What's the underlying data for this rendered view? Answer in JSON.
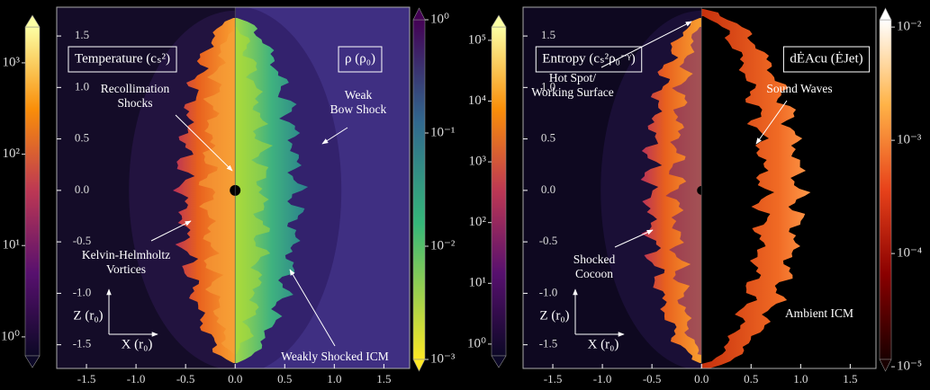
{
  "chart_data": [
    {
      "type": "heatmap",
      "labels": [
        "Temperature (cₛ²)",
        "ρ (ρ₀)"
      ],
      "xlabel": "X (r₀)",
      "ylabel": "Z (r₀)",
      "xlim": [
        -1.8,
        1.76
      ],
      "ylim": [
        -1.73,
        1.78
      ],
      "xticks": [
        -1.5,
        {
          "value": -1.0,
          "label": "-1.0"
        },
        -0.5,
        {
          "value": 0.0,
          "label": "0.0"
        },
        0.5,
        {
          "value": 1.0,
          "label": "1.0"
        },
        1.5
      ],
      "yticks": [
        -1.5,
        {
          "value": -1.0,
          "label": "-1.0"
        },
        -0.5,
        {
          "value": 0.0,
          "label": "0.0"
        },
        0.5,
        {
          "value": 1.0,
          "label": "1.0"
        },
        1.5
      ],
      "colorbars": [
        {
          "colormap": "inferno",
          "log": true,
          "lim": [
            0.62,
            2470
          ],
          "ticks": [
            {
              "value": 1,
              "label": "10⁰"
            },
            {
              "value": 10,
              "label": "10¹"
            },
            {
              "value": 100,
              "label": "10²"
            },
            {
              "value": 1000,
              "label": "10³"
            }
          ]
        },
        {
          "colormap": "viridis_r",
          "log": true,
          "lim": [
            0.001,
            1
          ],
          "ticks": [
            {
              "value": 1,
              "label": "10⁰"
            },
            {
              "value": 0.1,
              "label": "10⁻¹"
            },
            {
              "value": 0.01,
              "label": "10⁻²"
            },
            {
              "value": 0.001,
              "label": "10⁻³"
            }
          ]
        }
      ],
      "annotations": [
        [
          "Recollimation",
          "Shocks"
        ],
        [
          "Kelvin-Helmholtz",
          "Vortices"
        ],
        [
          "Weak",
          "Bow Shock"
        ],
        [
          "Weakly Shocked ICM"
        ]
      ]
    },
    {
      "type": "heatmap",
      "labels": [
        "Entropy (cₛ²ρ₀⁻ᵞ)",
        "dĖAcu (ĖJet)"
      ],
      "xlabel": "X (r₀)",
      "ylabel": "Z (r₀)",
      "xlim": [
        -1.8,
        1.76
      ],
      "ylim": [
        -1.73,
        1.78
      ],
      "xticks": [
        -1.5,
        {
          "value": -1.0,
          "label": "-1.0"
        },
        -0.5,
        {
          "value": 0.0,
          "label": "0.0"
        },
        0.5,
        {
          "value": 1.0,
          "label": "1.0"
        },
        1.5
      ],
      "yticks": [
        -1.5,
        {
          "value": -1.0,
          "label": "-1.0"
        },
        -0.5,
        {
          "value": 0.0,
          "label": "0.0"
        },
        0.5,
        {
          "value": 1.0,
          "label": "1.0"
        },
        1.5
      ],
      "colorbars": [
        {
          "colormap": "inferno",
          "log": true,
          "lim": [
            0.64,
            166000
          ],
          "ticks": [
            {
              "value": 1,
              "label": "10⁰"
            },
            {
              "value": 10,
              "label": "10¹"
            },
            {
              "value": 100,
              "label": "10²"
            },
            {
              "value": 1000,
              "label": "10³"
            },
            {
              "value": 10000,
              "label": "10⁴"
            },
            {
              "value": 100000,
              "label": "10⁵"
            }
          ]
        },
        {
          "colormap": "hot_r",
          "log": true,
          "lim": [
            1.16e-05,
            0.0116
          ],
          "ticks": [
            {
              "value": 0.01,
              "label": "10⁻²"
            },
            {
              "value": 0.001,
              "label": "10⁻³"
            },
            {
              "value": 0.0001,
              "label": "10⁻⁴"
            },
            {
              "value": 1e-05,
              "label": "10⁻⁵"
            }
          ]
        }
      ],
      "annotations": [
        [
          "Hot Spot/",
          "Working Surface"
        ],
        [
          "Shocked",
          "Cocoon"
        ],
        [
          "Sound Waves"
        ],
        [
          "Ambient ICM"
        ]
      ]
    }
  ]
}
